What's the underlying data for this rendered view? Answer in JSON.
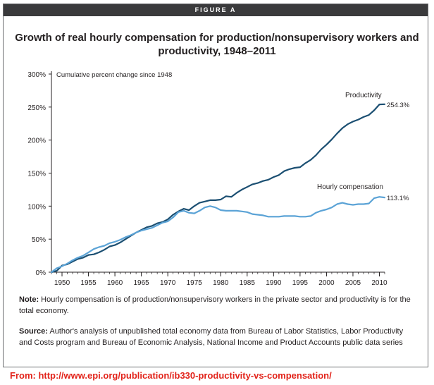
{
  "figure_label": "FIGURE A",
  "note_label": "Note:",
  "note_text": "Hourly compensation is of production/nonsupervisory workers in the private sector and productivity is for the total economy.",
  "source_label": "Source:",
  "source_text": "Author's analysis of unpublished total economy data from Bureau of Labor Statistics, Labor Productivity and Costs program and Bureau of Economic Analysis, National Income and Product Accounts public data series",
  "from_text": "From: http://www.epi.org/publication/ib330-productivity-vs-compensation/",
  "chart_data": {
    "type": "line",
    "title": "Growth of real hourly compensation for production/nonsupervisory workers and productivity, 1948–2011",
    "ylabel": "Cumulative percent change since 1948",
    "xlabel": "",
    "xlim": [
      1948,
      2011
    ],
    "ylim": [
      0,
      300
    ],
    "yticks": [
      0,
      50,
      100,
      150,
      200,
      250,
      300
    ],
    "ytick_labels": [
      "0%",
      "50%",
      "100%",
      "150%",
      "200%",
      "250%",
      "300%"
    ],
    "xticks": [
      1950,
      1955,
      1960,
      1965,
      1970,
      1975,
      1980,
      1985,
      1990,
      1995,
      2000,
      2005,
      2010
    ],
    "grid": false,
    "series": [
      {
        "name": "Productivity",
        "end_label": "254.3%",
        "color": "#1b4f72",
        "x": [
          1948,
          1949,
          1950,
          1951,
          1952,
          1953,
          1954,
          1955,
          1956,
          1957,
          1958,
          1959,
          1960,
          1961,
          1962,
          1963,
          1964,
          1965,
          1966,
          1967,
          1968,
          1969,
          1970,
          1971,
          1972,
          1973,
          1974,
          1975,
          1976,
          1977,
          1978,
          1979,
          1980,
          1981,
          1982,
          1983,
          1984,
          1985,
          1986,
          1987,
          1988,
          1989,
          1990,
          1991,
          1992,
          1993,
          1994,
          1995,
          1996,
          1997,
          1998,
          1999,
          2000,
          2001,
          2002,
          2003,
          2004,
          2005,
          2006,
          2007,
          2008,
          2009,
          2010,
          2011
        ],
        "values": [
          0,
          2,
          10,
          12,
          16,
          20,
          22,
          26,
          27,
          30,
          34,
          39,
          41,
          45,
          50,
          55,
          60,
          64,
          68,
          70,
          74,
          76,
          80,
          87,
          92,
          96,
          94,
          100,
          105,
          107,
          109,
          109,
          110,
          115,
          114,
          120,
          125,
          129,
          133,
          135,
          138,
          140,
          144,
          147,
          153,
          156,
          158,
          159,
          165,
          170,
          177,
          186,
          193,
          201,
          210,
          218,
          224,
          228,
          231,
          235,
          238,
          245,
          254,
          254.3
        ]
      },
      {
        "name": "Hourly compensation",
        "end_label": "113.1%",
        "color": "#5ba3d6",
        "x": [
          1948,
          1949,
          1950,
          1951,
          1952,
          1953,
          1954,
          1955,
          1956,
          1957,
          1958,
          1959,
          1960,
          1961,
          1962,
          1963,
          1964,
          1965,
          1966,
          1967,
          1968,
          1969,
          1970,
          1971,
          1972,
          1973,
          1974,
          1975,
          1976,
          1977,
          1978,
          1979,
          1980,
          1981,
          1982,
          1983,
          1984,
          1985,
          1986,
          1987,
          1988,
          1989,
          1990,
          1991,
          1992,
          1993,
          1994,
          1995,
          1996,
          1997,
          1998,
          1999,
          2000,
          2001,
          2002,
          2003,
          2004,
          2005,
          2006,
          2007,
          2008,
          2009,
          2010,
          2011
        ],
        "values": [
          0,
          6,
          9,
          13,
          18,
          22,
          25,
          30,
          35,
          38,
          40,
          44,
          46,
          49,
          53,
          56,
          60,
          63,
          65,
          67,
          71,
          75,
          77,
          83,
          91,
          93,
          90,
          89,
          93,
          98,
          100,
          98,
          94,
          93,
          93,
          93,
          92,
          91,
          88,
          87,
          86,
          84,
          84,
          84,
          85,
          85,
          85,
          84,
          84,
          85,
          90,
          93,
          95,
          98,
          103,
          105,
          103,
          102,
          103,
          103,
          104,
          112,
          114,
          113.1
        ]
      }
    ]
  }
}
